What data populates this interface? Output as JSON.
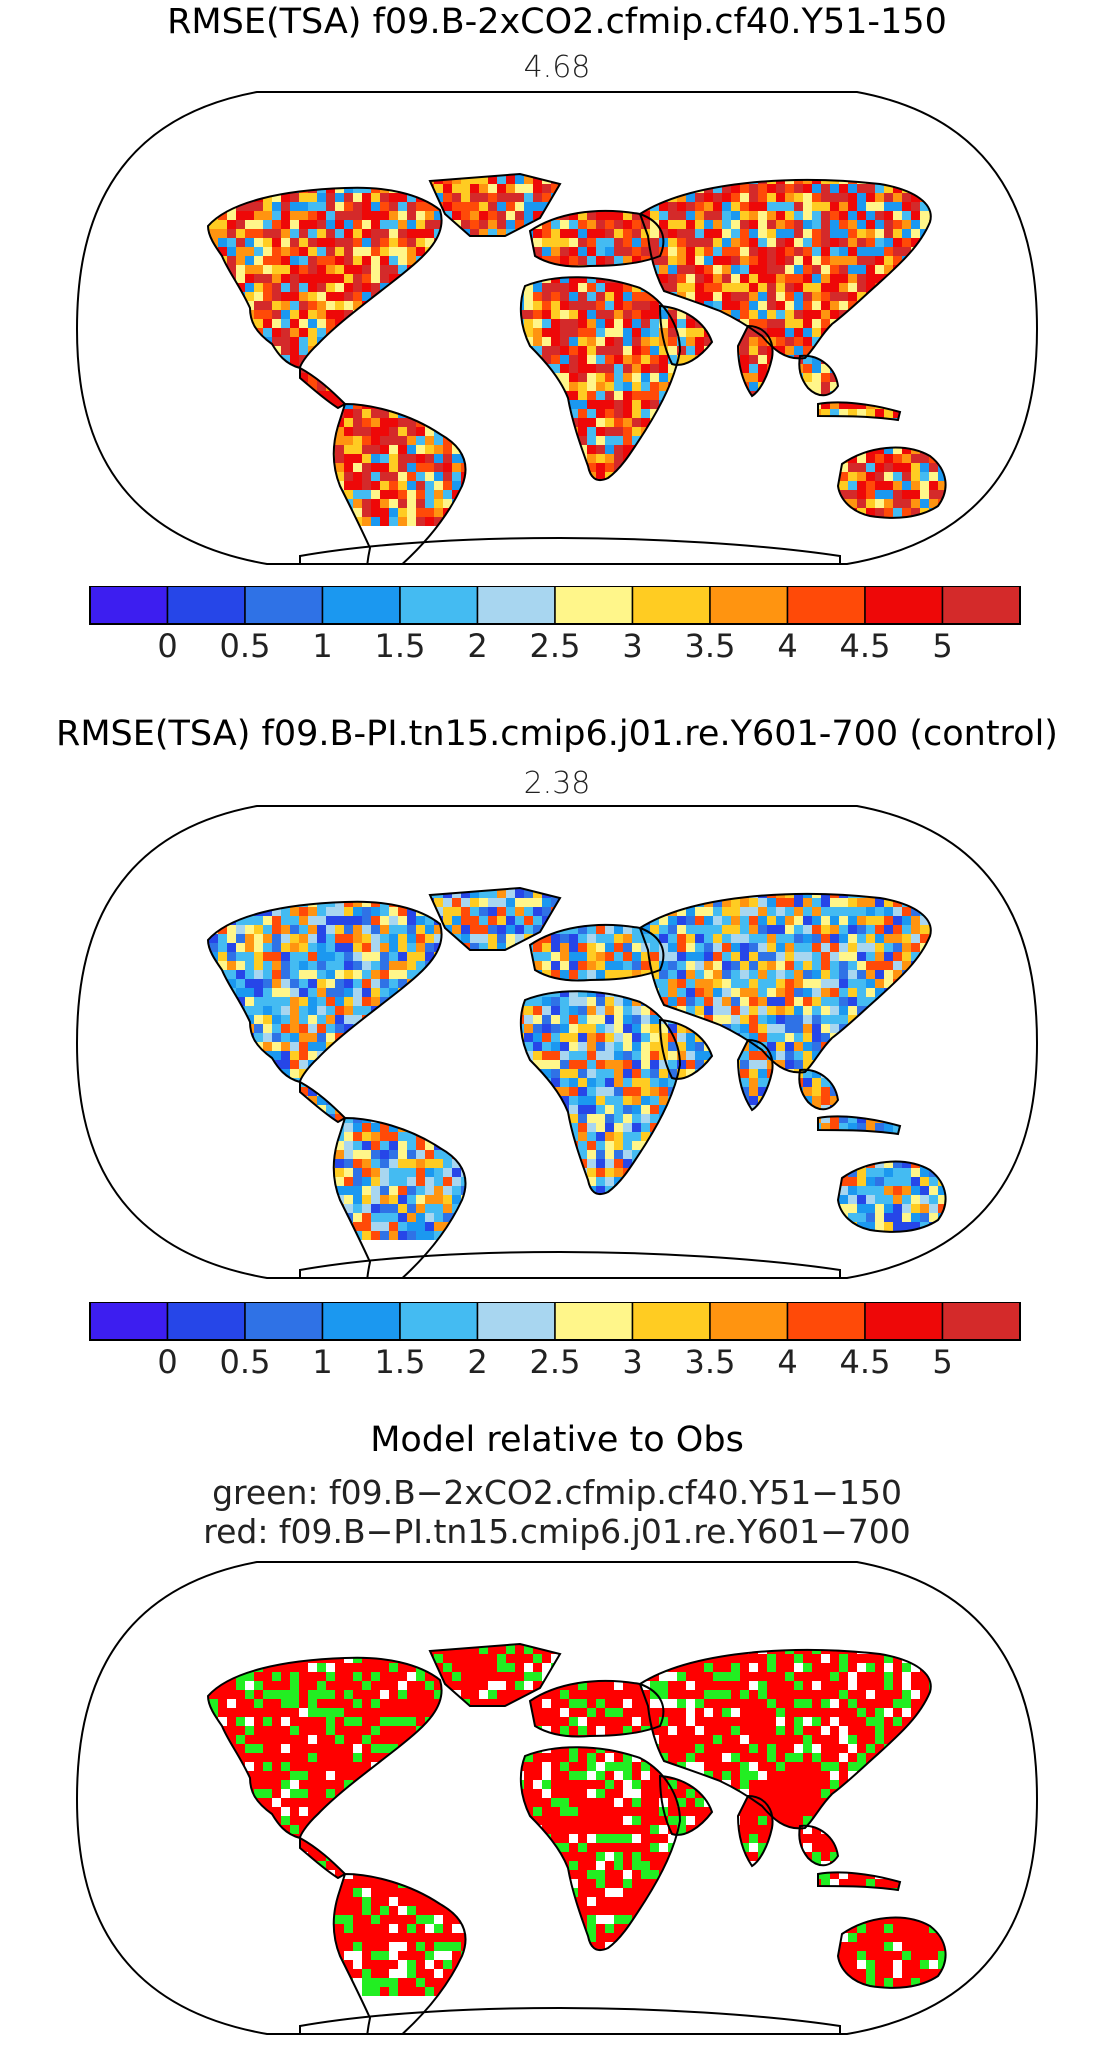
{
  "panels": [
    {
      "title": "RMSE(TSA) f09.B-2xCO2.cfmip.cf40.Y51-150",
      "value": "4.68",
      "theme": "warm"
    },
    {
      "title": "RMSE(TSA) f09.B-PI.tn15.cmip6.j01.re.Y601-700 (control)",
      "value": "2.38",
      "theme": "cool"
    }
  ],
  "colorbar": {
    "colors": [
      "#3d1ef0",
      "#2646e8",
      "#2f72e6",
      "#1b98f0",
      "#44bbf2",
      "#a8d6f0",
      "#fff68a",
      "#ffcc22",
      "#ff9410",
      "#ff4a08",
      "#ee0808",
      "#d42a2a"
    ],
    "tick_labels": [
      "0",
      "0.5",
      "1",
      "1.5",
      "2",
      "2.5",
      "3",
      "3.5",
      "4",
      "4.5",
      "5"
    ]
  },
  "comparison": {
    "title": "Model relative to Obs",
    "green_label": "green: f09.B−2xCO2.cfmip.cf40.Y51−150",
    "red_label": "red: f09.B−PI.tn15.cmip6.j01.re.Y601−700",
    "colors": {
      "green": "#22ee22",
      "red": "#ff0000"
    }
  }
}
